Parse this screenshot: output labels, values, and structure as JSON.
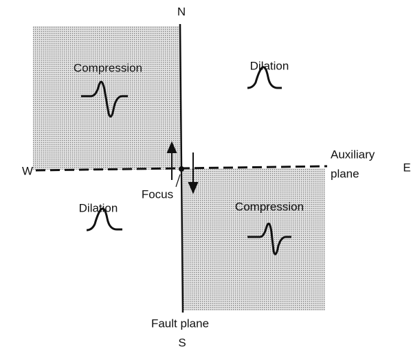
{
  "directions": {
    "north": "N",
    "south": "S",
    "west": "W",
    "east": "E"
  },
  "quadrants": [
    {
      "label": "Compression"
    },
    {
      "label": "Dilation"
    },
    {
      "label": "Dilation"
    },
    {
      "label": "Compression"
    }
  ],
  "auxiliary_plane": {
    "lines": [
      "Auxiliary",
      "plane"
    ]
  },
  "fault_plane": {
    "label": "Fault plane"
  },
  "focus": {
    "label": "Focus"
  }
}
